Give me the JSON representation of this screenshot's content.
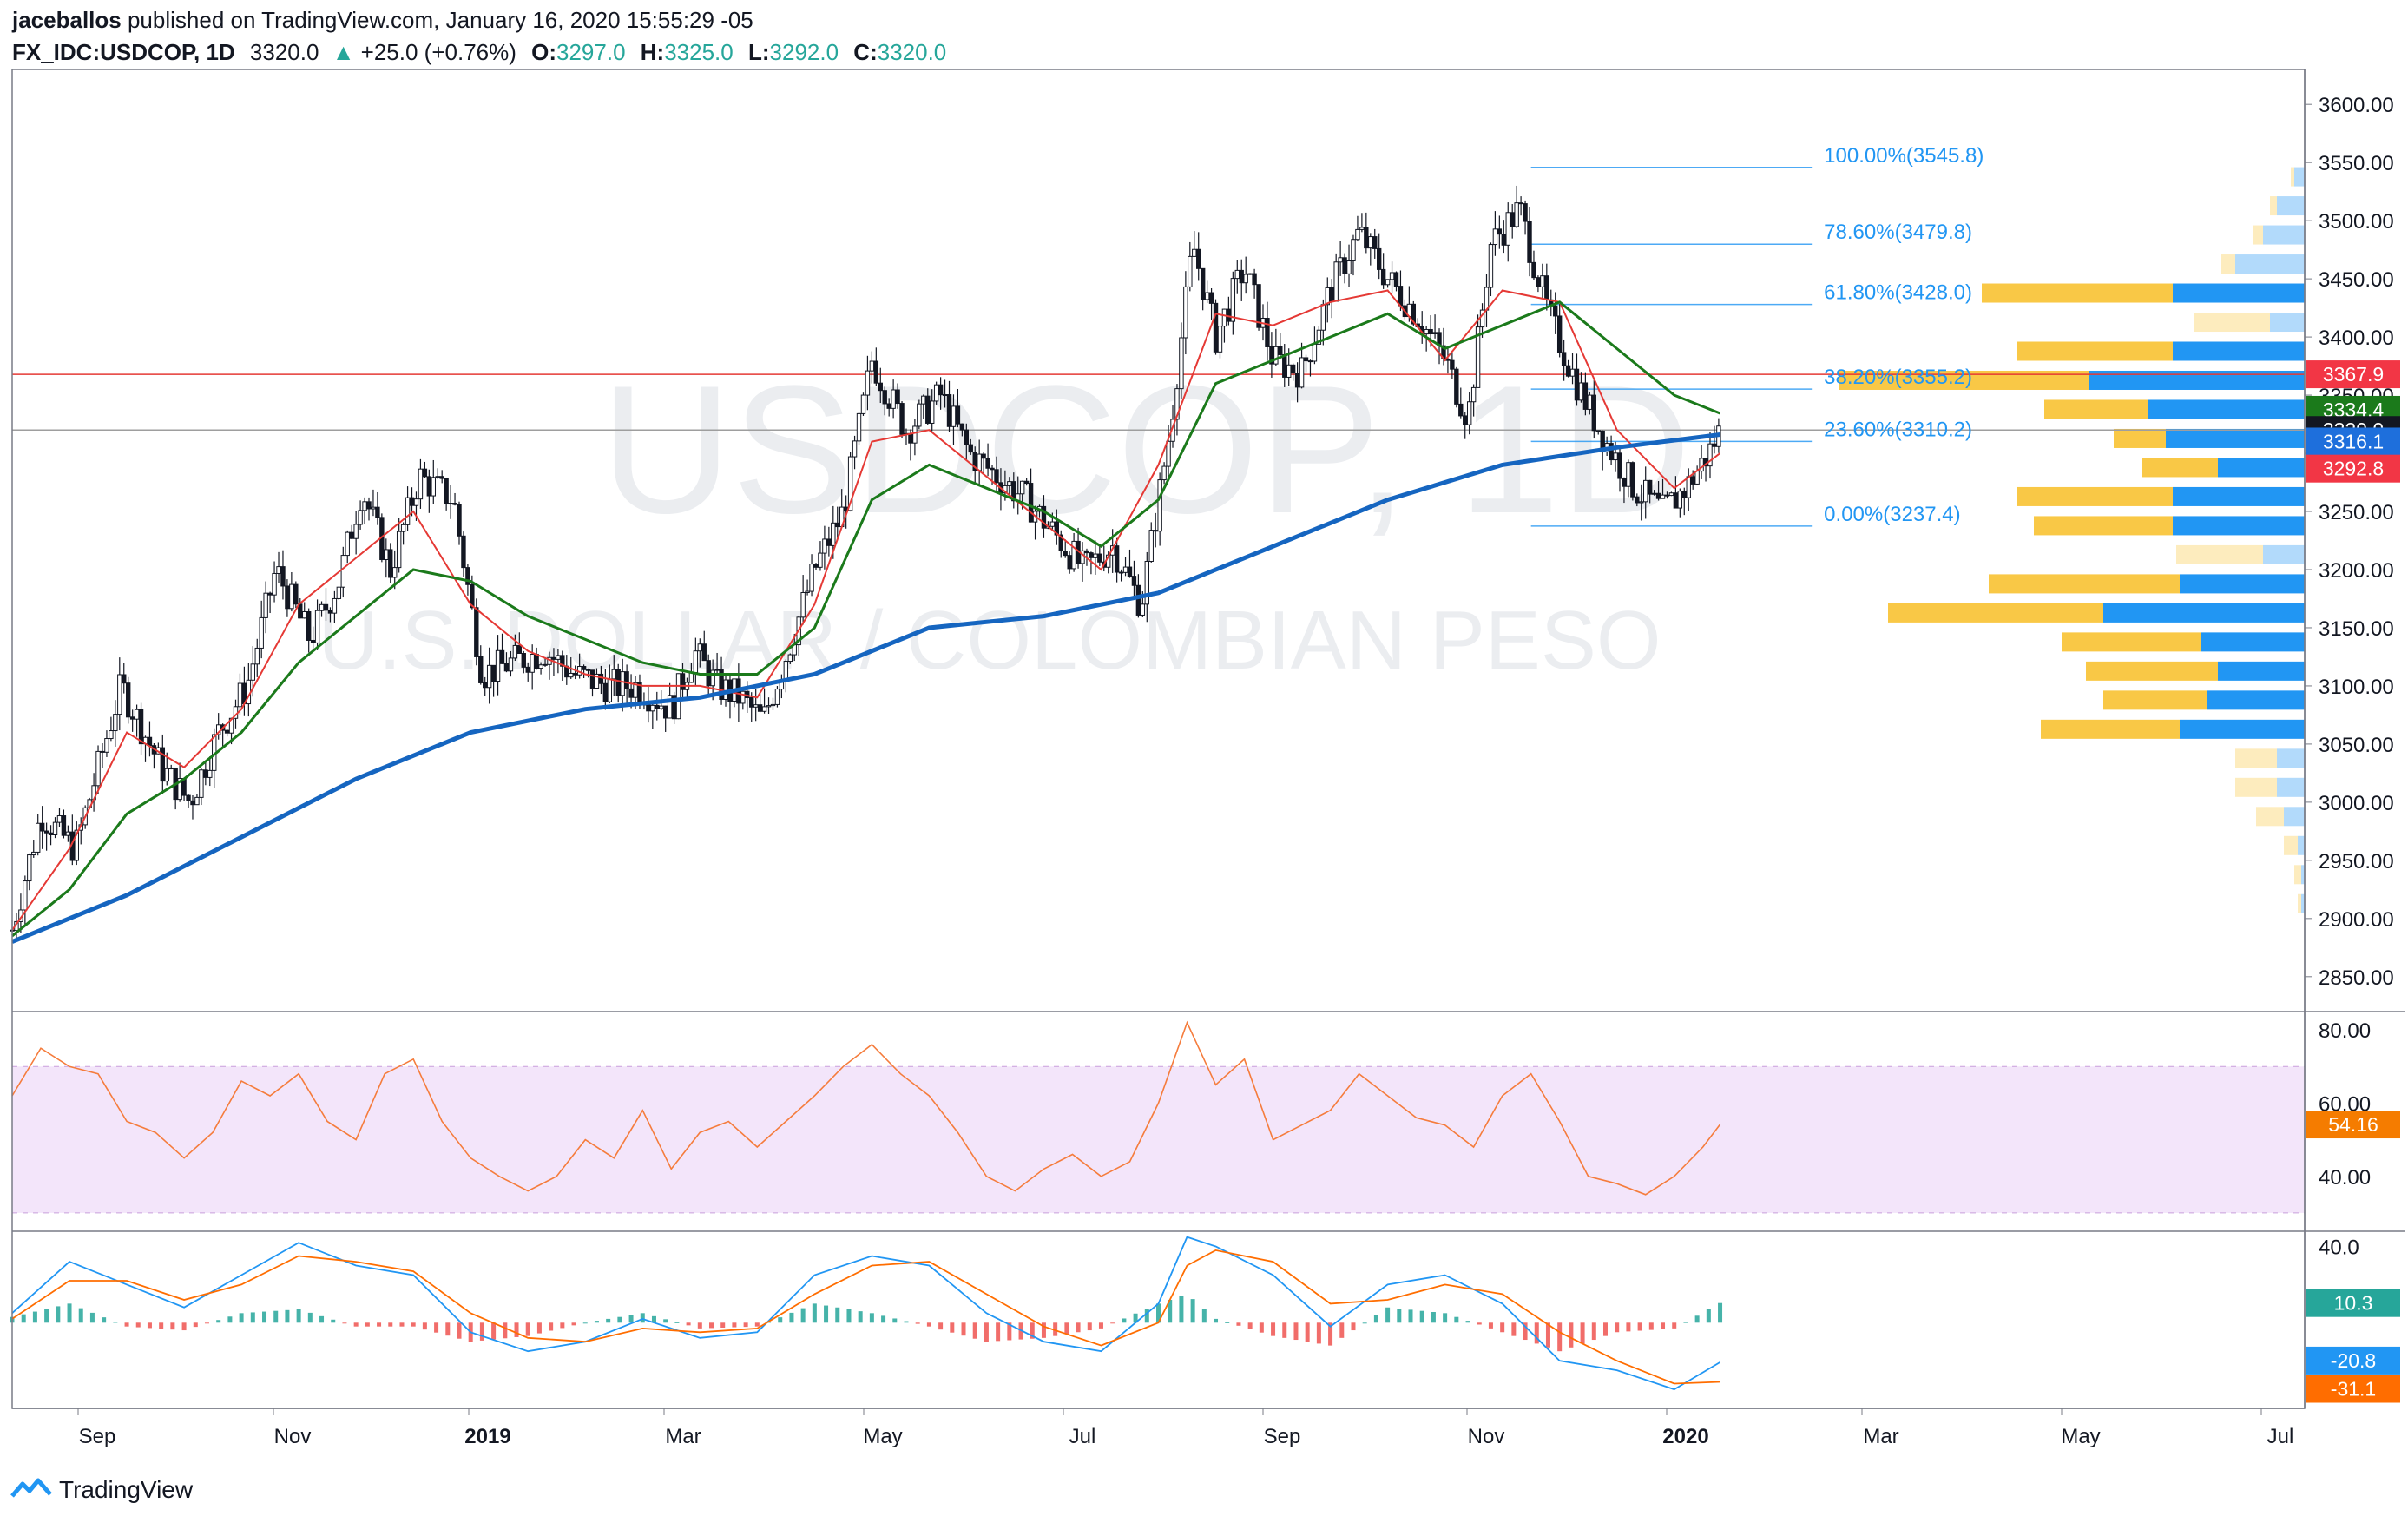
{
  "header": {
    "publisher": "jaceballos",
    "published_text": "published on TradingView.com, January 16, 2020 15:55:29 -05",
    "symbol": "FX_IDC:USDCOP, 1D",
    "last": "3320.0",
    "arrow": "▲",
    "change": "+25.0 (+0.76%)",
    "o_label": "O:",
    "o": "3297.0",
    "h_label": "H:",
    "h": "3325.0",
    "l_label": "L:",
    "l": "3292.0",
    "c_label": "C:",
    "c": "3320.0"
  },
  "watermark": {
    "line1": "USDCOP, 1D",
    "line2": "U.S. DOLLAR / COLOMBIAN PESO"
  },
  "footer": {
    "brand": "TradingView"
  },
  "colors": {
    "up": "#26a69a",
    "ema_short": "#e53935",
    "ema_mid": "#1b7a1b",
    "ema_long": "#1565c0",
    "fib": "#2196f3",
    "rsi": "#f57c3c",
    "rsi_band": "#f3e5fa",
    "hist_pos": "#26a69a",
    "hist_neg": "#ef5350",
    "macd": "#2196f3",
    "signal": "#ff6d00",
    "vp_up": "#2196f3",
    "vp_down": "#f9c846"
  },
  "chart_data": [
    {
      "type": "candlestick",
      "name": "USDCOP daily",
      "x_ticks": [
        "Sep",
        "Nov",
        "2019",
        "Mar",
        "May",
        "Jul",
        "Sep",
        "Nov",
        "2020",
        "Mar",
        "May",
        "Jul"
      ],
      "y_ticks": [
        2850,
        2900,
        2950,
        3000,
        3050,
        3100,
        3150,
        3200,
        3250,
        3300,
        3350,
        3400,
        3450,
        3500,
        3550,
        3600
      ],
      "ylim": [
        2820,
        3630
      ],
      "close_path": [
        [
          0,
          2890
        ],
        [
          10,
          2990
        ],
        [
          22,
          2960
        ],
        [
          38,
          3100
        ],
        [
          52,
          3030
        ],
        [
          62,
          3000
        ],
        [
          72,
          3060
        ],
        [
          82,
          3100
        ],
        [
          92,
          3200
        ],
        [
          104,
          3140
        ],
        [
          114,
          3190
        ],
        [
          122,
          3270
        ],
        [
          132,
          3200
        ],
        [
          142,
          3280
        ],
        [
          154,
          3260
        ],
        [
          164,
          3110
        ],
        [
          174,
          3120
        ],
        [
          186,
          3130
        ],
        [
          196,
          3110
        ],
        [
          208,
          3100
        ],
        [
          218,
          3100
        ],
        [
          230,
          3080
        ],
        [
          238,
          3130
        ],
        [
          246,
          3100
        ],
        [
          254,
          3090
        ],
        [
          262,
          3070
        ],
        [
          272,
          3140
        ],
        [
          280,
          3200
        ],
        [
          290,
          3250
        ],
        [
          300,
          3380
        ],
        [
          312,
          3320
        ],
        [
          324,
          3350
        ],
        [
          334,
          3300
        ],
        [
          344,
          3280
        ],
        [
          354,
          3260
        ],
        [
          364,
          3230
        ],
        [
          374,
          3200
        ],
        [
          384,
          3220
        ],
        [
          394,
          3170
        ],
        [
          404,
          3320
        ],
        [
          412,
          3480
        ],
        [
          420,
          3400
        ],
        [
          430,
          3460
        ],
        [
          440,
          3380
        ],
        [
          450,
          3370
        ],
        [
          460,
          3440
        ],
        [
          470,
          3490
        ],
        [
          480,
          3450
        ],
        [
          490,
          3420
        ],
        [
          500,
          3380
        ],
        [
          508,
          3330
        ],
        [
          516,
          3480
        ],
        [
          526,
          3510
        ],
        [
          536,
          3420
        ],
        [
          546,
          3360
        ],
        [
          556,
          3310
        ],
        [
          566,
          3270
        ],
        [
          576,
          3250
        ],
        [
          584,
          3270
        ],
        [
          592,
          3300
        ],
        [
          596,
          3320
        ]
      ],
      "x_domain": [
        0,
        800
      ],
      "ema_short_path": [
        [
          0,
          2890
        ],
        [
          20,
          2960
        ],
        [
          40,
          3060
        ],
        [
          60,
          3030
        ],
        [
          80,
          3080
        ],
        [
          100,
          3170
        ],
        [
          120,
          3210
        ],
        [
          140,
          3250
        ],
        [
          160,
          3170
        ],
        [
          180,
          3130
        ],
        [
          200,
          3110
        ],
        [
          220,
          3100
        ],
        [
          240,
          3100
        ],
        [
          260,
          3090
        ],
        [
          280,
          3170
        ],
        [
          300,
          3310
        ],
        [
          320,
          3320
        ],
        [
          340,
          3280
        ],
        [
          360,
          3240
        ],
        [
          380,
          3200
        ],
        [
          400,
          3290
        ],
        [
          420,
          3420
        ],
        [
          440,
          3410
        ],
        [
          460,
          3430
        ],
        [
          480,
          3440
        ],
        [
          500,
          3380
        ],
        [
          520,
          3440
        ],
        [
          540,
          3430
        ],
        [
          560,
          3320
        ],
        [
          580,
          3270
        ],
        [
          596,
          3300
        ]
      ],
      "ema_mid_path": [
        [
          0,
          2885
        ],
        [
          20,
          2925
        ],
        [
          40,
          2990
        ],
        [
          60,
          3020
        ],
        [
          80,
          3060
        ],
        [
          100,
          3120
        ],
        [
          120,
          3160
        ],
        [
          140,
          3200
        ],
        [
          160,
          3190
        ],
        [
          180,
          3160
        ],
        [
          200,
          3140
        ],
        [
          220,
          3120
        ],
        [
          240,
          3110
        ],
        [
          260,
          3110
        ],
        [
          280,
          3150
        ],
        [
          300,
          3260
        ],
        [
          320,
          3290
        ],
        [
          340,
          3270
        ],
        [
          360,
          3250
        ],
        [
          380,
          3220
        ],
        [
          400,
          3260
        ],
        [
          420,
          3360
        ],
        [
          440,
          3380
        ],
        [
          460,
          3400
        ],
        [
          480,
          3420
        ],
        [
          500,
          3390
        ],
        [
          520,
          3410
        ],
        [
          540,
          3430
        ],
        [
          560,
          3390
        ],
        [
          580,
          3350
        ],
        [
          596,
          3334.4
        ]
      ],
      "ema_long_path": [
        [
          0,
          2880
        ],
        [
          40,
          2920
        ],
        [
          80,
          2970
        ],
        [
          120,
          3020
        ],
        [
          160,
          3060
        ],
        [
          200,
          3080
        ],
        [
          240,
          3090
        ],
        [
          280,
          3110
        ],
        [
          320,
          3150
        ],
        [
          360,
          3160
        ],
        [
          400,
          3180
        ],
        [
          440,
          3220
        ],
        [
          480,
          3260
        ],
        [
          520,
          3290
        ],
        [
          560,
          3305
        ],
        [
          596,
          3316.1
        ]
      ],
      "fibonacci": [
        {
          "label": "100.00%(3545.8)",
          "price": 3545.8
        },
        {
          "label": "78.60%(3479.8)",
          "price": 3479.8
        },
        {
          "label": "61.80%(3428.0)",
          "price": 3428.0
        },
        {
          "label": "38.20%(3355.2)",
          "price": 3355.2
        },
        {
          "label": "23.60%(3310.2)",
          "price": 3310.2
        },
        {
          "label": "0.00%(3237.4)",
          "price": 3237.4
        }
      ],
      "horizontal_lines": [
        {
          "price": 3367.9,
          "color": "#e53935"
        },
        {
          "price": 3320.0,
          "color": "#9e9e9e"
        }
      ],
      "price_labels": [
        {
          "text": "3367.9",
          "price": 3367.9,
          "bg": "#f23645",
          "fg": "#ffffff"
        },
        {
          "text": "3334.4",
          "price": 3334.4,
          "bg": "#1b7a1b",
          "fg": "#ffffff"
        },
        {
          "text": "3320.0",
          "price": 3320.0,
          "bg": "#131722",
          "fg": "#ffffff"
        },
        {
          "text": "3316.1",
          "price": 3316.1,
          "bg": "#1e6fdc",
          "fg": "#ffffff"
        },
        {
          "text": "3292.8",
          "price": 3292.8,
          "bg": "#f23645",
          "fg": "#ffffff"
        }
      ],
      "volume_profile": [
        {
          "price": 3537,
          "up": 1,
          "down": 3
        },
        {
          "price": 3512,
          "up": 2,
          "down": 8
        },
        {
          "price": 3487,
          "up": 3,
          "down": 12
        },
        {
          "price": 3462,
          "up": 4,
          "down": 20
        },
        {
          "price": 3437,
          "up": 55,
          "down": 38
        },
        {
          "price": 3412,
          "up": 22,
          "down": 10
        },
        {
          "price": 3387,
          "up": 45,
          "down": 38
        },
        {
          "price": 3362,
          "up": 72,
          "down": 62
        },
        {
          "price": 3337,
          "up": 30,
          "down": 45
        },
        {
          "price": 3312,
          "up": 15,
          "down": 40
        },
        {
          "price": 3287,
          "up": 22,
          "down": 25
        },
        {
          "price": 3262,
          "up": 45,
          "down": 38
        },
        {
          "price": 3237,
          "up": 40,
          "down": 38
        },
        {
          "price": 3212,
          "up": 25,
          "down": 12
        },
        {
          "price": 3187,
          "up": 55,
          "down": 36
        },
        {
          "price": 3162,
          "up": 62,
          "down": 58
        },
        {
          "price": 3137,
          "up": 40,
          "down": 30
        },
        {
          "price": 3112,
          "up": 38,
          "down": 25
        },
        {
          "price": 3087,
          "up": 30,
          "down": 28
        },
        {
          "price": 3062,
          "up": 40,
          "down": 36
        },
        {
          "price": 3037,
          "up": 12,
          "down": 8
        },
        {
          "price": 3012,
          "up": 12,
          "down": 8
        },
        {
          "price": 2987,
          "up": 8,
          "down": 6
        },
        {
          "price": 2962,
          "up": 4,
          "down": 2
        },
        {
          "price": 2937,
          "up": 2,
          "down": 1
        },
        {
          "price": 2912,
          "up": 1,
          "down": 1
        }
      ]
    },
    {
      "type": "line",
      "name": "RSI",
      "y_ticks": [
        40,
        60,
        80
      ],
      "ylim": [
        25,
        85
      ],
      "band": [
        30,
        70
      ],
      "last_label": "54.16",
      "x_domain": [
        0,
        800
      ],
      "values": [
        [
          0,
          62
        ],
        [
          10,
          75
        ],
        [
          20,
          70
        ],
        [
          30,
          68
        ],
        [
          40,
          55
        ],
        [
          50,
          52
        ],
        [
          60,
          45
        ],
        [
          70,
          52
        ],
        [
          80,
          66
        ],
        [
          90,
          62
        ],
        [
          100,
          68
        ],
        [
          110,
          55
        ],
        [
          120,
          50
        ],
        [
          130,
          68
        ],
        [
          140,
          72
        ],
        [
          150,
          55
        ],
        [
          160,
          45
        ],
        [
          170,
          40
        ],
        [
          180,
          36
        ],
        [
          190,
          40
        ],
        [
          200,
          50
        ],
        [
          210,
          45
        ],
        [
          220,
          58
        ],
        [
          230,
          42
        ],
        [
          240,
          52
        ],
        [
          250,
          55
        ],
        [
          260,
          48
        ],
        [
          270,
          55
        ],
        [
          280,
          62
        ],
        [
          290,
          70
        ],
        [
          300,
          76
        ],
        [
          310,
          68
        ],
        [
          320,
          62
        ],
        [
          330,
          52
        ],
        [
          340,
          40
        ],
        [
          350,
          36
        ],
        [
          360,
          42
        ],
        [
          370,
          46
        ],
        [
          380,
          40
        ],
        [
          390,
          44
        ],
        [
          400,
          60
        ],
        [
          410,
          82
        ],
        [
          420,
          65
        ],
        [
          430,
          72
        ],
        [
          440,
          50
        ],
        [
          450,
          54
        ],
        [
          460,
          58
        ],
        [
          470,
          68
        ],
        [
          480,
          62
        ],
        [
          490,
          56
        ],
        [
          500,
          54
        ],
        [
          510,
          48
        ],
        [
          520,
          62
        ],
        [
          530,
          68
        ],
        [
          540,
          55
        ],
        [
          550,
          40
        ],
        [
          560,
          38
        ],
        [
          570,
          35
        ],
        [
          580,
          40
        ],
        [
          590,
          48
        ],
        [
          596,
          54.16
        ]
      ]
    },
    {
      "type": "bar",
      "name": "MACD",
      "y_ticks": [
        40
      ],
      "ylim": [
        -45,
        48
      ],
      "labels": [
        {
          "text": "10.3",
          "value": 10.3,
          "bg": "#26a69a"
        },
        {
          "text": "-20.8",
          "value": -20.8,
          "bg": "#2196f3"
        },
        {
          "text": "-31.1",
          "value": -31.1,
          "bg": "#ff6d00"
        }
      ],
      "x_domain": [
        0,
        800
      ],
      "macd": [
        [
          0,
          5
        ],
        [
          20,
          32
        ],
        [
          40,
          20
        ],
        [
          60,
          8
        ],
        [
          80,
          25
        ],
        [
          100,
          42
        ],
        [
          120,
          30
        ],
        [
          140,
          25
        ],
        [
          160,
          -5
        ],
        [
          180,
          -15
        ],
        [
          200,
          -10
        ],
        [
          220,
          2
        ],
        [
          240,
          -8
        ],
        [
          260,
          -5
        ],
        [
          280,
          25
        ],
        [
          300,
          35
        ],
        [
          320,
          30
        ],
        [
          340,
          5
        ],
        [
          360,
          -10
        ],
        [
          380,
          -15
        ],
        [
          400,
          10
        ],
        [
          410,
          45
        ],
        [
          420,
          40
        ],
        [
          440,
          25
        ],
        [
          460,
          -2
        ],
        [
          480,
          20
        ],
        [
          500,
          25
        ],
        [
          520,
          10
        ],
        [
          540,
          -20
        ],
        [
          560,
          -25
        ],
        [
          580,
          -35
        ],
        [
          596,
          -20.8
        ]
      ],
      "signal": [
        [
          0,
          2
        ],
        [
          20,
          22
        ],
        [
          40,
          22
        ],
        [
          60,
          12
        ],
        [
          80,
          20
        ],
        [
          100,
          35
        ],
        [
          120,
          32
        ],
        [
          140,
          27
        ],
        [
          160,
          5
        ],
        [
          180,
          -8
        ],
        [
          200,
          -10
        ],
        [
          220,
          -3
        ],
        [
          240,
          -5
        ],
        [
          260,
          -3
        ],
        [
          280,
          15
        ],
        [
          300,
          30
        ],
        [
          320,
          32
        ],
        [
          340,
          15
        ],
        [
          360,
          -2
        ],
        [
          380,
          -12
        ],
        [
          400,
          0
        ],
        [
          410,
          30
        ],
        [
          420,
          38
        ],
        [
          440,
          32
        ],
        [
          460,
          10
        ],
        [
          480,
          12
        ],
        [
          500,
          20
        ],
        [
          520,
          15
        ],
        [
          540,
          -5
        ],
        [
          560,
          -20
        ],
        [
          580,
          -32
        ],
        [
          596,
          -31.1
        ]
      ]
    }
  ]
}
